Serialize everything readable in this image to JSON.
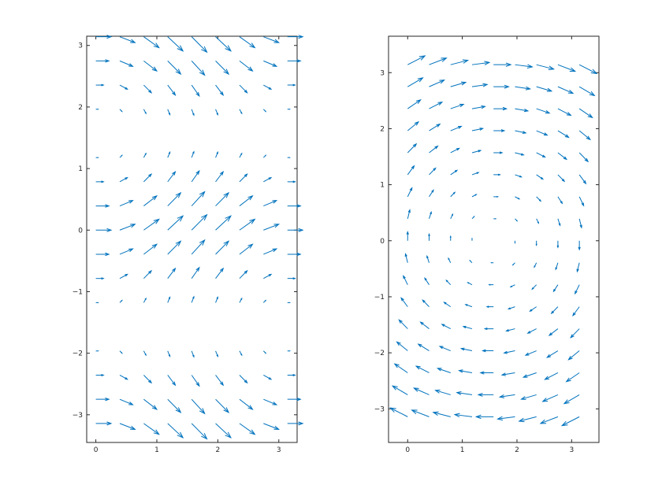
{
  "colors": {
    "arrow": "#0072BD",
    "axes": "#262626",
    "background": "#ffffff"
  },
  "chart_data": [
    {
      "type": "quiver",
      "title": "",
      "xlabel": "",
      "ylabel": "",
      "xlim": [
        -0.15,
        3.3
      ],
      "ylim": [
        -3.45,
        3.15
      ],
      "xticks": [
        0,
        1,
        2,
        3
      ],
      "yticks": [
        -3,
        -2,
        -1,
        0,
        1,
        2,
        3
      ],
      "xtick_labels": [
        "0",
        "1",
        "2",
        "3"
      ],
      "ytick_labels": [
        "−3",
        "−2",
        "−1",
        "0",
        "1",
        "2",
        "3"
      ],
      "grid": false,
      "field": {
        "x_range": [
          0,
          3.1416
        ],
        "x_count": 9,
        "y_range": [
          -3.1416,
          3.1416
        ],
        "y_count": 17,
        "u": "cos(y)^2",
        "v": "sin(x) * cos(y)"
      }
    },
    {
      "type": "quiver",
      "title": "",
      "xlabel": "",
      "ylabel": "",
      "xlim": [
        -0.35,
        3.5
      ],
      "ylim": [
        -3.6,
        3.65
      ],
      "xticks": [
        0,
        1,
        2,
        3
      ],
      "yticks": [
        -3,
        -2,
        -1,
        0,
        1,
        2,
        3
      ],
      "xtick_labels": [
        "0",
        "1",
        "2",
        "3"
      ],
      "ytick_labels": [
        "−3",
        "−2",
        "−1",
        "0",
        "1",
        "2",
        "3"
      ],
      "grid": false,
      "field": {
        "x_range": [
          0,
          3.1416
        ],
        "x_count": 9,
        "y_range": [
          -3.1416,
          3.1416
        ],
        "y_count": 17,
        "u": "y",
        "v": "1.5708 - x"
      }
    }
  ]
}
